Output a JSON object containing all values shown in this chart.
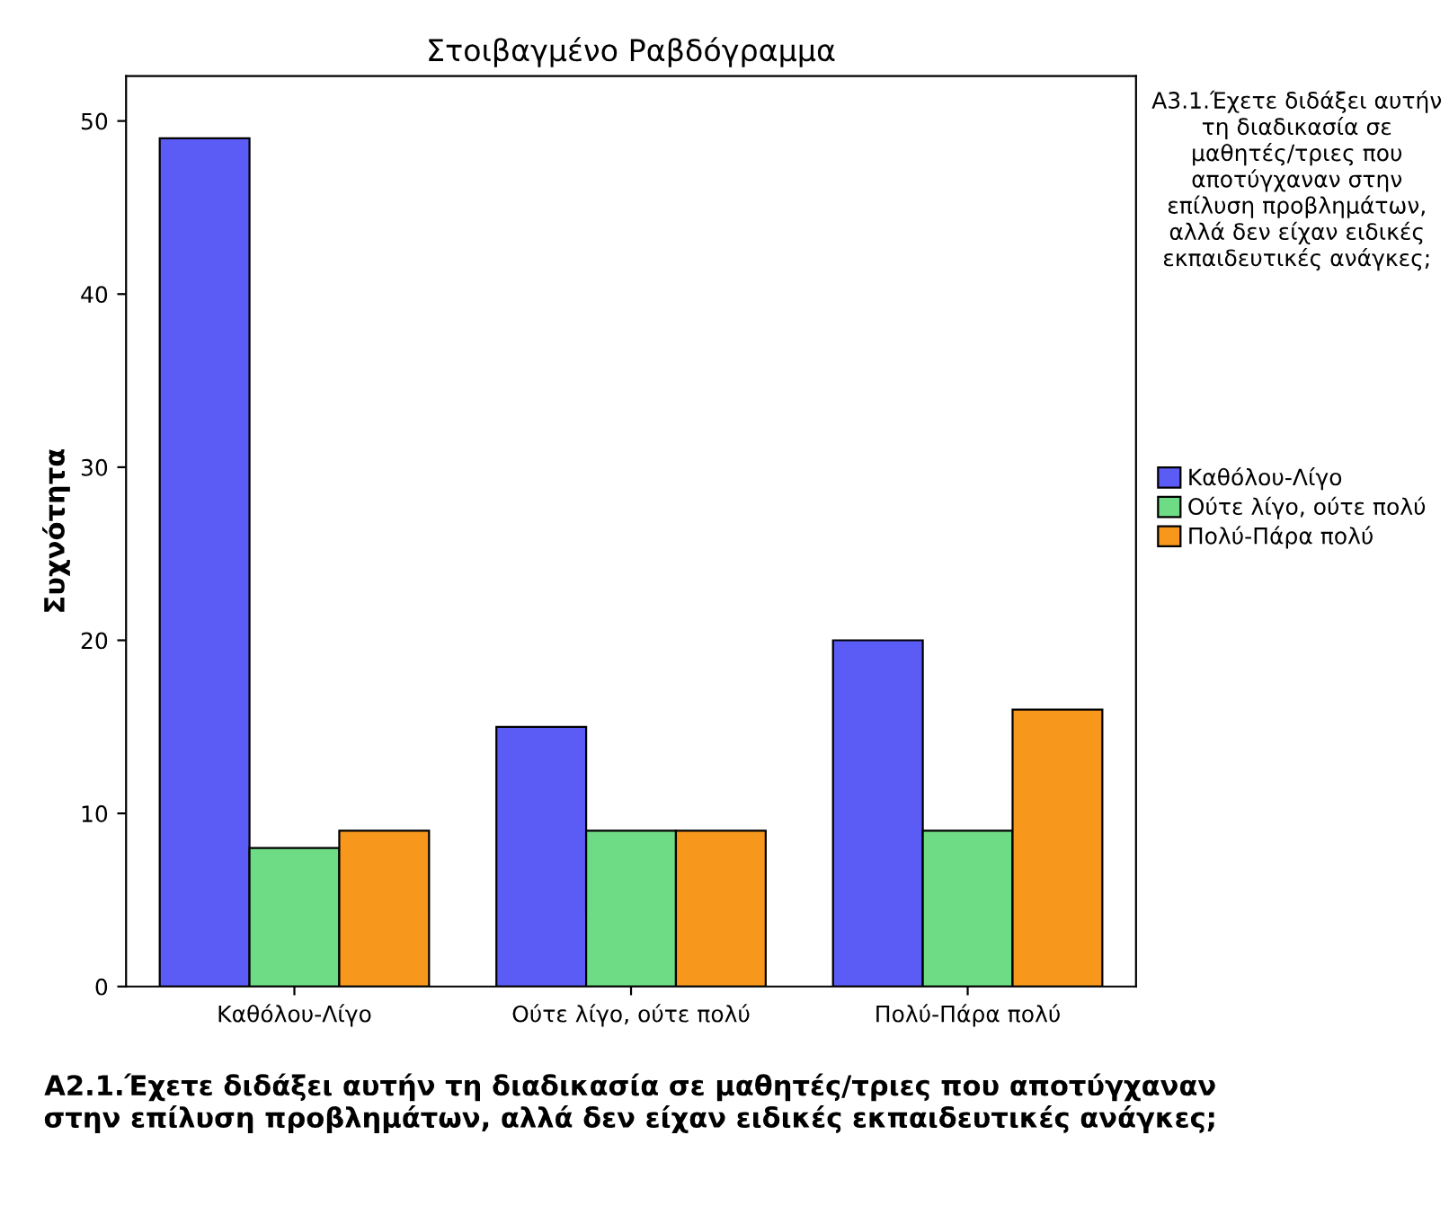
{
  "chart_data": {
    "type": "bar",
    "title": "Στοιβαγμένο Ραβδόγραμμα",
    "xlabel": "Α2.1.Έχετε διδάξει αυτήν τη διαδικασία σε μαθητές/τριες που αποτύγχαναν στην επίλυση προβλημάτων, αλλά δεν είχαν ειδικές εκπαιδευτικές ανάγκες;",
    "ylabel": "Συχνότητα",
    "legend_title": "Α3.1.Έχετε διδάξει αυτήν τη διαδικασία σε μαθητές/τριες που αποτύγχαναν στην επίλυση προβλημάτων, αλλά δεν είχαν ειδικές εκπαιδευτικές ανάγκες;",
    "categories": [
      "Καθόλου-Λίγο",
      "Ούτε λίγο, ούτε πολύ",
      "Πολύ-Πάρα πολύ"
    ],
    "series": [
      {
        "name": "Καθόλου-Λίγο",
        "color": "#5b5cf5",
        "values": [
          49,
          15,
          20
        ]
      },
      {
        "name": "Ούτε λίγο, ούτε πολύ",
        "color": "#6edc84",
        "values": [
          8,
          9,
          9
        ]
      },
      {
        "name": "Πολύ-Πάρα πολύ",
        "color": "#f7981d",
        "values": [
          9,
          9,
          16
        ]
      }
    ],
    "ylim": [
      0,
      52.6
    ],
    "yticks": [
      0,
      10,
      20,
      30,
      40,
      50
    ],
    "grid": false,
    "legend": "right"
  }
}
